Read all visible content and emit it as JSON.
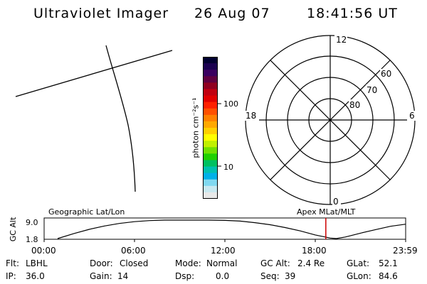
{
  "header": {
    "instrument": "Ultraviolet Imager",
    "date": "26 Aug 07",
    "time": "18:41:56 UT"
  },
  "colorbar": {
    "unit_label": "photon cm⁻²s⁻¹",
    "tick_labels": [
      "100",
      "10"
    ],
    "colors": [
      "#000030",
      "#1a0050",
      "#3a0060",
      "#600040",
      "#900020",
      "#c00010",
      "#e00000",
      "#ff2000",
      "#ff5000",
      "#ff8000",
      "#ffa800",
      "#ffd000",
      "#ffff00",
      "#c0f000",
      "#70e000",
      "#20d000",
      "#00c060",
      "#00c0b0",
      "#00b0e8",
      "#80d8f0",
      "#c8e8f0",
      "#e8e8e8"
    ]
  },
  "polar": {
    "mlt_labels": {
      "top": "12",
      "left": "18",
      "right": "6",
      "bottom": "0"
    },
    "lat_labels": [
      "60",
      "70",
      "80"
    ]
  },
  "chart_data": {
    "type": "line",
    "title": "Geographic Lat/Lon",
    "right_title": "Apex MLat/MLT",
    "ylabel": "GC Alt",
    "y_tick_labels": [
      "9.0",
      "1.8"
    ],
    "ylim": [
      1.8,
      9.0
    ],
    "x_tick_labels": [
      "00:00",
      "06:00",
      "12:00",
      "18:00",
      "23:59"
    ],
    "xlim": [
      0,
      24
    ],
    "series": [
      {
        "x": [
          0.9,
          2,
          3,
          4,
          5,
          6,
          7,
          8,
          9,
          10,
          10.9,
          12,
          13,
          14,
          15,
          16,
          17,
          18,
          19,
          19.4,
          20,
          21,
          22,
          23,
          23.98
        ],
        "values": [
          1.8,
          3.8,
          5.4,
          6.7,
          7.7,
          8.4,
          8.8,
          9.0,
          9.0,
          9.0,
          9.0,
          8.9,
          8.6,
          8.0,
          7.2,
          6.1,
          4.8,
          3.2,
          2.0,
          1.8,
          2.4,
          3.9,
          5.3,
          6.6,
          7.4
        ]
      }
    ],
    "marker_time": 18.7,
    "marker_color": "#cc0000"
  },
  "info": {
    "flt_label": "Flt:",
    "flt_value": "LBHL",
    "ip_label": "IP:",
    "ip_value": "36.0",
    "door_label": "Door:",
    "door_value": "Closed",
    "gain_label": "Gain:",
    "gain_value": "14",
    "mode_label": "Mode:",
    "mode_value": "Normal",
    "dsp_label": "Dsp:",
    "dsp_value": "0.0",
    "gcalt_label": "GC Alt:",
    "gcalt_value": "2.4 Re",
    "seq_label": "Seq:",
    "seq_value": "39",
    "glat_label": "GLat:",
    "glat_value": "52.1",
    "glon_label": "GLon:",
    "glon_value": "84.6"
  }
}
